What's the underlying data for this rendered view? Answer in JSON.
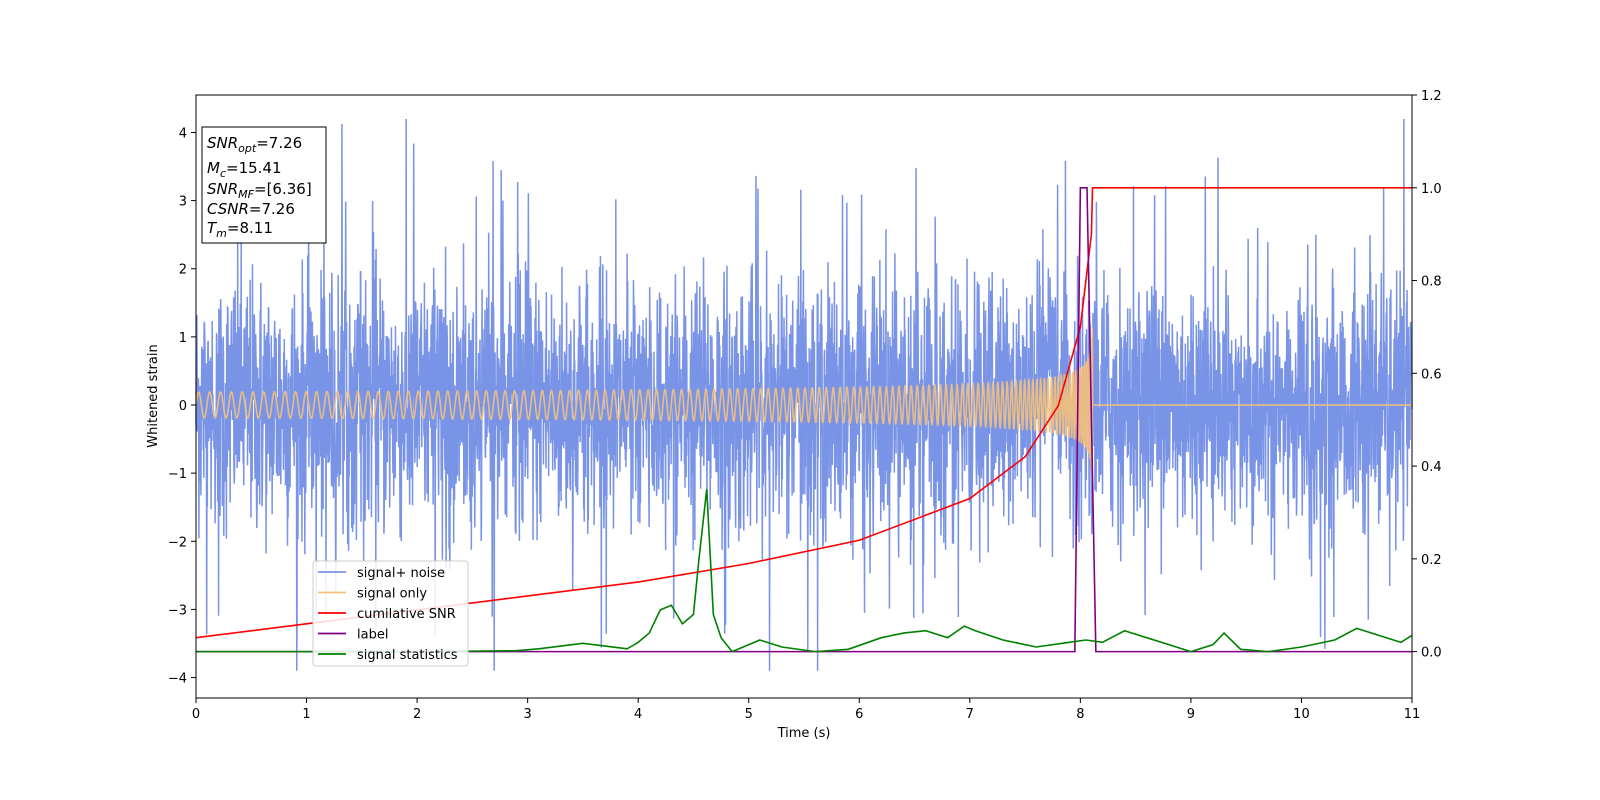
{
  "chart_data": {
    "type": "line",
    "xlabel": "Time (s)",
    "ylabel": "Whitened strain",
    "xlim": [
      0,
      11
    ],
    "ylim_left": [
      -4.3,
      4.55
    ],
    "ylim_right": [
      -0.1,
      1.2
    ],
    "xticks": [
      "0",
      "1",
      "2",
      "3",
      "4",
      "5",
      "6",
      "7",
      "8",
      "9",
      "10",
      "11"
    ],
    "yticks_left": [
      "−4",
      "−3",
      "−2",
      "−1",
      "0",
      "1",
      "2",
      "3",
      "4"
    ],
    "yticks_right": [
      "0.0",
      "0.2",
      "0.4",
      "0.6",
      "0.8",
      "1.0",
      "1.2"
    ],
    "legend_position": "lower-left",
    "info_box": {
      "lines": [
        {
          "prefix": "SNR",
          "sub": "opt",
          "value": "=7.26"
        },
        {
          "prefix": "M",
          "sub": "c",
          "value": "=15.41"
        },
        {
          "prefix": "SNR",
          "sub": "MF",
          "value": "=[6.36]"
        },
        {
          "prefix": "CSNR",
          "sub": "",
          "value": "=7.26"
        },
        {
          "prefix": "T",
          "sub": "m",
          "value": "=8.11"
        }
      ]
    },
    "series": [
      {
        "name": "signal+ noise",
        "color": "#7993e6",
        "axis": "left",
        "kind": "noise",
        "sigma": 0.95,
        "x_range": [
          0,
          11
        ]
      },
      {
        "name": "signal only",
        "color": "#f5c17a",
        "axis": "left",
        "kind": "chirp",
        "merger_time": 8.11,
        "peak_amplitude": 1.4
      },
      {
        "name": "cumilative SNR",
        "color": "#ff0000",
        "axis": "right",
        "x": [
          0,
          1,
          2,
          3,
          4,
          5,
          6,
          7,
          7.5,
          7.8,
          8.0,
          8.1,
          8.11,
          8.12,
          11
        ],
        "y": [
          0.03,
          0.06,
          0.09,
          0.12,
          0.15,
          0.19,
          0.24,
          0.33,
          0.42,
          0.53,
          0.7,
          0.9,
          1.0,
          1.0,
          1.0
        ]
      },
      {
        "name": "label",
        "color": "#800080",
        "axis": "right",
        "x": [
          0,
          7.95,
          8.0,
          8.06,
          8.1,
          8.14,
          11
        ],
        "y": [
          0.0,
          0.0,
          1.0,
          1.0,
          0.5,
          0.0,
          0.0
        ]
      },
      {
        "name": "signal statistics",
        "color": "#008000",
        "axis": "right",
        "x": [
          0,
          1,
          2,
          2.9,
          3.1,
          3.3,
          3.5,
          3.7,
          3.9,
          4.0,
          4.1,
          4.2,
          4.3,
          4.4,
          4.5,
          4.55,
          4.62,
          4.68,
          4.75,
          4.85,
          4.95,
          5.1,
          5.3,
          5.6,
          5.9,
          6.2,
          6.4,
          6.6,
          6.8,
          6.95,
          7.05,
          7.3,
          7.6,
          7.9,
          8.05,
          8.2,
          8.4,
          8.6,
          8.8,
          9.0,
          9.2,
          9.3,
          9.45,
          9.7,
          10.0,
          10.3,
          10.5,
          10.7,
          10.9,
          11
        ],
        "y": [
          0.0,
          0.0,
          0.0,
          0.002,
          0.006,
          0.012,
          0.018,
          0.012,
          0.006,
          0.02,
          0.04,
          0.09,
          0.1,
          0.06,
          0.08,
          0.2,
          0.35,
          0.08,
          0.03,
          0.0,
          0.01,
          0.025,
          0.01,
          0.0,
          0.005,
          0.03,
          0.04,
          0.045,
          0.03,
          0.055,
          0.045,
          0.025,
          0.01,
          0.02,
          0.025,
          0.02,
          0.045,
          0.03,
          0.015,
          0.0,
          0.015,
          0.04,
          0.005,
          0.0,
          0.01,
          0.025,
          0.05,
          0.035,
          0.02,
          0.035
        ]
      }
    ]
  }
}
